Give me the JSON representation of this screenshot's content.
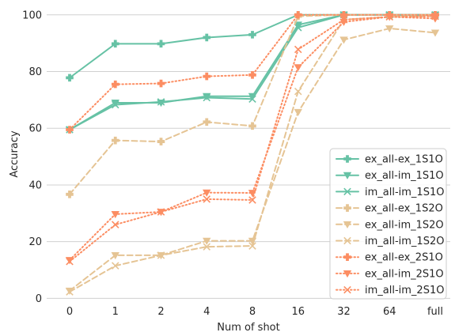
{
  "chart_data": {
    "type": "line",
    "title": "",
    "xlabel": "Num of shot",
    "ylabel": "Accuracy",
    "categories": [
      "0",
      "1",
      "2",
      "4",
      "8",
      "16",
      "32",
      "64",
      "full"
    ],
    "ylim": [
      -1,
      103
    ],
    "yticks": [
      0,
      20,
      40,
      60,
      80,
      100
    ],
    "grid": "y",
    "legend": "bottom-right",
    "series": [
      {
        "name": "ex_all-ex_1S1O",
        "color": "#66c2a5",
        "dash": "solid",
        "marker": "plus",
        "values": [
          77.8,
          89.8,
          89.8,
          92.0,
          93.0,
          100,
          100,
          100,
          100
        ]
      },
      {
        "name": "ex_all-im_1S1O",
        "color": "#66c2a5",
        "dash": "solid",
        "marker": "triangle",
        "values": [
          59.5,
          69.0,
          69.0,
          71.3,
          71.3,
          96.5,
          100,
          100,
          100
        ]
      },
      {
        "name": "im_all-im_1S1O",
        "color": "#66c2a5",
        "dash": "solid",
        "marker": "x",
        "values": [
          59.5,
          68.3,
          69.3,
          70.8,
          70.3,
          95.5,
          100,
          100,
          100
        ]
      },
      {
        "name": "ex_all-ex_1S2O",
        "color": "#e5c494",
        "dash": "dashed",
        "marker": "plus",
        "values": [
          36.7,
          55.7,
          55.3,
          62.2,
          60.8,
          99.5,
          100,
          100,
          100
        ]
      },
      {
        "name": "ex_all-im_1S2O",
        "color": "#e5c494",
        "dash": "dashed",
        "marker": "triangle",
        "values": [
          2.7,
          15.2,
          15.2,
          20.3,
          20.3,
          65.7,
          91.2,
          95.2,
          93.7
        ]
      },
      {
        "name": "im_all-im_1S2O",
        "color": "#e5c494",
        "dash": "dashed",
        "marker": "x",
        "values": [
          2.3,
          11.5,
          15.2,
          18.2,
          18.5,
          73.0,
          98.3,
          99.3,
          99.5
        ]
      },
      {
        "name": "ex_all-ex_2S1O",
        "color": "#fc8d62",
        "dash": "dotted",
        "marker": "plus",
        "values": [
          59.5,
          75.5,
          75.8,
          78.3,
          78.8,
          100,
          100,
          100,
          100
        ]
      },
      {
        "name": "ex_all-im_2S1O",
        "color": "#fc8d62",
        "dash": "dotted",
        "marker": "triangle",
        "values": [
          13.5,
          29.7,
          30.5,
          37.3,
          37.2,
          81.5,
          97.5,
          99.3,
          98.7
        ]
      },
      {
        "name": "im_all-im_2S1O",
        "color": "#fc8d62",
        "dash": "dotted",
        "marker": "x",
        "values": [
          13.0,
          26.0,
          30.5,
          35.0,
          34.7,
          87.8,
          98.3,
          99.3,
          99.5
        ]
      }
    ]
  }
}
